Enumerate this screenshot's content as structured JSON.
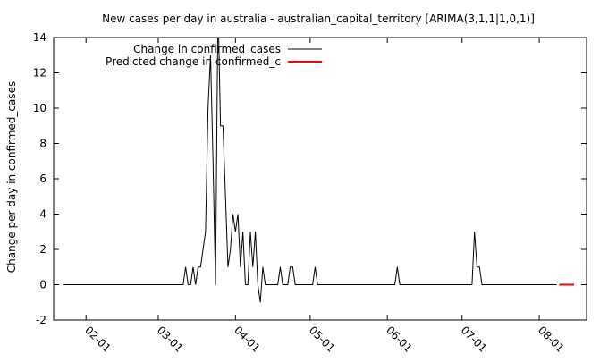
{
  "chart_data": {
    "type": "line",
    "title": "New cases per day in australia - australian_capital_territory [ARIMA(3,1,1|1,0,1)]",
    "xlabel": "",
    "ylabel": "Change per day in confirmed_cases",
    "ylim": [
      -2,
      14
    ],
    "yticks": [
      -2,
      0,
      2,
      4,
      6,
      8,
      10,
      12,
      14
    ],
    "xlim": [
      "2020-01-19",
      "2020-08-20"
    ],
    "xticks": [
      {
        "date": "2020-02-01",
        "label": "02-01"
      },
      {
        "date": "2020-03-01",
        "label": "03-01"
      },
      {
        "date": "2020-04-01",
        "label": "04-01"
      },
      {
        "date": "2020-05-01",
        "label": "05-01"
      },
      {
        "date": "2020-06-01",
        "label": "06-01"
      },
      {
        "date": "2020-07-01",
        "label": "07-01"
      },
      {
        "date": "2020-08-01",
        "label": "08-01"
      }
    ],
    "grid": false,
    "legend_position": "top-left",
    "series": [
      {
        "name": "Change in confirmed_cases",
        "color": "#000000",
        "points": [
          [
            "2020-01-23",
            0
          ],
          [
            "2020-03-11",
            0
          ],
          [
            "2020-03-12",
            1
          ],
          [
            "2020-03-13",
            0
          ],
          [
            "2020-03-14",
            0
          ],
          [
            "2020-03-15",
            1
          ],
          [
            "2020-03-16",
            0
          ],
          [
            "2020-03-17",
            1
          ],
          [
            "2020-03-18",
            1
          ],
          [
            "2020-03-19",
            2
          ],
          [
            "2020-03-20",
            3
          ],
          [
            "2020-03-21",
            10
          ],
          [
            "2020-03-22",
            13
          ],
          [
            "2020-03-23",
            7
          ],
          [
            "2020-03-24",
            0
          ],
          [
            "2020-03-25",
            16
          ],
          [
            "2020-03-26",
            9
          ],
          [
            "2020-03-27",
            9
          ],
          [
            "2020-03-28",
            5
          ],
          [
            "2020-03-29",
            1
          ],
          [
            "2020-03-30",
            2
          ],
          [
            "2020-03-31",
            4
          ],
          [
            "2020-04-01",
            3
          ],
          [
            "2020-04-02",
            4
          ],
          [
            "2020-04-03",
            1
          ],
          [
            "2020-04-04",
            3
          ],
          [
            "2020-04-05",
            0
          ],
          [
            "2020-04-06",
            0
          ],
          [
            "2020-04-07",
            3
          ],
          [
            "2020-04-08",
            1
          ],
          [
            "2020-04-09",
            3
          ],
          [
            "2020-04-10",
            0
          ],
          [
            "2020-04-11",
            -1
          ],
          [
            "2020-04-12",
            1
          ],
          [
            "2020-04-13",
            0
          ],
          [
            "2020-04-18",
            0
          ],
          [
            "2020-04-19",
            1
          ],
          [
            "2020-04-20",
            0
          ],
          [
            "2020-04-22",
            0
          ],
          [
            "2020-04-23",
            1
          ],
          [
            "2020-04-24",
            1
          ],
          [
            "2020-04-25",
            0
          ],
          [
            "2020-05-02",
            0
          ],
          [
            "2020-05-03",
            1
          ],
          [
            "2020-05-04",
            0
          ],
          [
            "2020-06-04",
            0
          ],
          [
            "2020-06-05",
            1
          ],
          [
            "2020-06-06",
            0
          ],
          [
            "2020-07-05",
            0
          ],
          [
            "2020-07-06",
            3
          ],
          [
            "2020-07-07",
            1
          ],
          [
            "2020-07-08",
            1
          ],
          [
            "2020-07-09",
            0
          ],
          [
            "2020-08-08",
            0
          ]
        ]
      },
      {
        "name": "Predicted change in confirmed_c",
        "color": "#ff0000",
        "points": [
          [
            "2020-08-09",
            0
          ],
          [
            "2020-08-15",
            0
          ]
        ]
      }
    ]
  }
}
